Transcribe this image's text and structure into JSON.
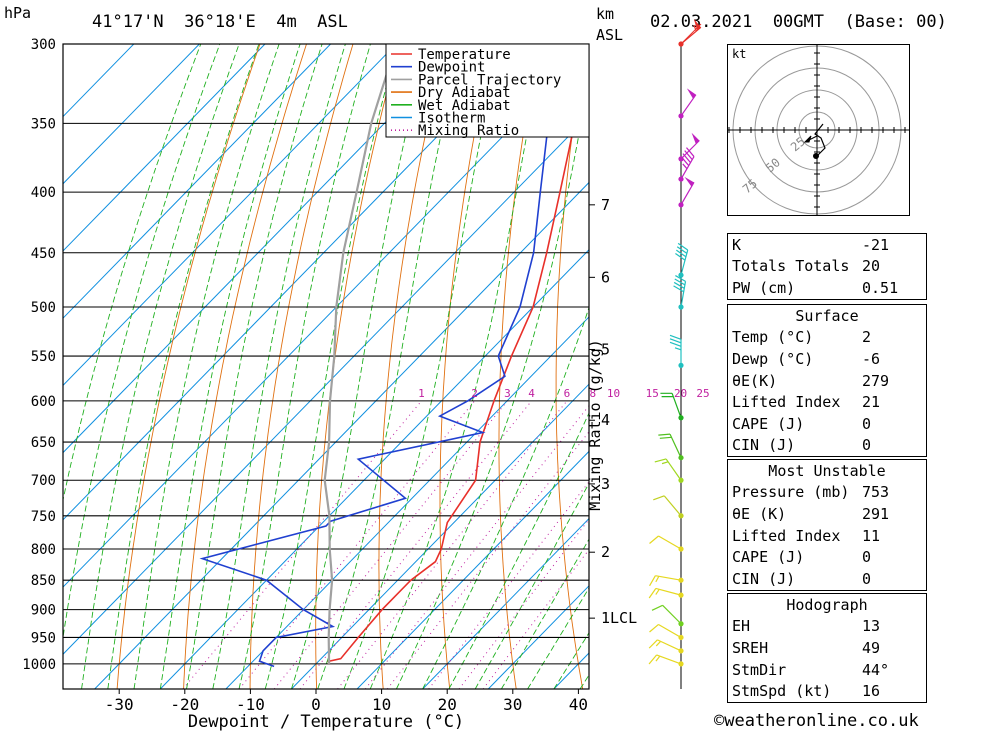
{
  "header": {
    "left_unit": "hPa",
    "location": "41°17'N  36°18'E  4m  ASL",
    "km_label": "km",
    "asl_label": "ASL",
    "datetime": "02.03.2021  00GMT  (Base: 00)"
  },
  "legend": [
    {
      "label": "Temperature",
      "color": "#e8302a",
      "style": "solid"
    },
    {
      "label": "Dewpoint",
      "color": "#2040d0",
      "style": "solid"
    },
    {
      "label": "Parcel Trajectory",
      "color": "#a0a0a0",
      "style": "solid"
    },
    {
      "label": "Dry Adiabat",
      "color": "#e07010",
      "style": "solid"
    },
    {
      "label": "Wet Adiabat",
      "color": "#20b020",
      "style": "solid"
    },
    {
      "label": "Isotherm",
      "color": "#1090e0",
      "style": "solid"
    },
    {
      "label": "Mixing Ratio",
      "color": "#c020a0",
      "style": "dotted"
    }
  ],
  "chart_data": {
    "type": "line",
    "title": "",
    "xlabel": "Dewpoint / Temperature (°C)",
    "ylabel": "hPa",
    "x_ticks": [
      -30,
      -20,
      -10,
      0,
      10,
      20,
      30,
      40
    ],
    "pressure_levels": [
      300,
      350,
      400,
      450,
      500,
      550,
      600,
      650,
      700,
      750,
      800,
      850,
      900,
      950,
      1000
    ],
    "km_ticks": [
      {
        "label": "7",
        "p": 410
      },
      {
        "label": "6",
        "p": 472
      },
      {
        "label": "5",
        "p": 543
      },
      {
        "label": "4",
        "p": 623
      },
      {
        "label": "3",
        "p": 705
      },
      {
        "label": "2",
        "p": 805
      },
      {
        "label": "1LCL",
        "p": 915
      }
    ],
    "mixing_ratio_label": "Mixing Ratio (g/kg)",
    "mixing_ratio_values": [
      "1",
      "2",
      "3",
      "4",
      "6",
      "8",
      "10",
      "15",
      "20",
      "25"
    ],
    "series": [
      {
        "name": "Temperature",
        "color": "#e8302a",
        "points": [
          [
            2,
            1000
          ],
          [
            1.5,
            995
          ],
          [
            3,
            990
          ],
          [
            2.5,
            950
          ],
          [
            2,
            900
          ],
          [
            2,
            850
          ],
          [
            3,
            820
          ],
          [
            2,
            800
          ],
          [
            -1,
            760
          ],
          [
            -3,
            700
          ],
          [
            -8,
            650
          ],
          [
            -12,
            600
          ],
          [
            -16,
            550
          ],
          [
            -20,
            500
          ],
          [
            -26,
            450
          ],
          [
            -33,
            400
          ],
          [
            -41,
            350
          ],
          [
            -50,
            300
          ]
        ]
      },
      {
        "name": "Dewpoint",
        "color": "#2040d0",
        "points": [
          [
            -6,
            1005
          ],
          [
            -9,
            995
          ],
          [
            -10,
            975
          ],
          [
            -10,
            950
          ],
          [
            -3,
            930
          ],
          [
            -10,
            900
          ],
          [
            -20,
            850
          ],
          [
            -33,
            815
          ],
          [
            -19,
            765
          ],
          [
            -19,
            758
          ],
          [
            -11,
            725
          ],
          [
            -24,
            672
          ],
          [
            -9,
            638
          ],
          [
            -18,
            618
          ],
          [
            -16,
            600
          ],
          [
            -14,
            572
          ],
          [
            -18,
            550
          ],
          [
            -22,
            500
          ],
          [
            -28,
            450
          ],
          [
            -36,
            400
          ],
          [
            -45,
            350
          ],
          [
            -59,
            300
          ]
        ]
      },
      {
        "name": "Parcel Trajectory",
        "color": "#a0a0a0",
        "points": [
          [
            2,
            1000
          ],
          [
            -2,
            950
          ],
          [
            -6,
            900
          ],
          [
            -10,
            850
          ],
          [
            -15,
            800
          ],
          [
            -20,
            750
          ],
          [
            -26,
            700
          ],
          [
            -31,
            650
          ],
          [
            -37,
            600
          ],
          [
            -43,
            550
          ],
          [
            -50,
            500
          ],
          [
            -57,
            450
          ],
          [
            -64,
            400
          ],
          [
            -72,
            350
          ],
          [
            -80,
            300
          ]
        ]
      }
    ]
  },
  "winds": [
    {
      "p": 1000,
      "dir": 290,
      "speed": 15,
      "color": "#e6d820"
    },
    {
      "p": 975,
      "dir": 295,
      "speed": 15,
      "color": "#e6d820"
    },
    {
      "p": 950,
      "dir": 300,
      "speed": 10,
      "color": "#e6d820"
    },
    {
      "p": 925,
      "dir": 315,
      "speed": 10,
      "color": "#70d020"
    },
    {
      "p": 875,
      "dir": 285,
      "speed": 15,
      "color": "#e6d820"
    },
    {
      "p": 850,
      "dir": 280,
      "speed": 15,
      "color": "#e6d820"
    },
    {
      "p": 800,
      "dir": 300,
      "speed": 10,
      "color": "#e6d820"
    },
    {
      "p": 750,
      "dir": 320,
      "speed": 10,
      "color": "#c0d020"
    },
    {
      "p": 700,
      "dir": 325,
      "speed": 15,
      "color": "#a0d820"
    },
    {
      "p": 670,
      "dir": 335,
      "speed": 20,
      "color": "#50c020"
    },
    {
      "p": 620,
      "dir": 340,
      "speed": 20,
      "color": "#20b020"
    },
    {
      "p": 560,
      "dir": 0,
      "speed": 35,
      "color": "#20c0c0"
    },
    {
      "p": 500,
      "dir": 10,
      "speed": 40,
      "color": "#20c0c0"
    },
    {
      "p": 470,
      "dir": 15,
      "speed": 40,
      "color": "#20c0c0"
    },
    {
      "p": 410,
      "dir": 30,
      "speed": 50,
      "color": "#c020c0"
    },
    {
      "p": 390,
      "dir": 30,
      "speed": 45,
      "color": "#c020c0"
    },
    {
      "p": 375,
      "dir": 45,
      "speed": 50,
      "color": "#c020c0"
    },
    {
      "p": 345,
      "dir": 35,
      "speed": 50,
      "color": "#c020c0"
    },
    {
      "p": 300,
      "dir": 50,
      "speed": 55,
      "color": "#e8302a"
    }
  ],
  "hodograph": {
    "unit_label": "kt",
    "ring_labels": [
      "25",
      "50",
      "75"
    ]
  },
  "indices": [
    {
      "label": "K",
      "value": "-21"
    },
    {
      "label": "Totals Totals",
      "value": "20"
    },
    {
      "label": "PW (cm)",
      "value": "0.51"
    }
  ],
  "surface": {
    "title": "Surface",
    "rows": [
      {
        "label": "Temp (°C)",
        "value": "2"
      },
      {
        "label": "Dewp (°C)",
        "value": "-6"
      },
      {
        "label": "θE(K)",
        "value": "279"
      },
      {
        "label": "Lifted Index",
        "value": "21"
      },
      {
        "label": "CAPE (J)",
        "value": "0"
      },
      {
        "label": "CIN (J)",
        "value": "0"
      }
    ]
  },
  "most_unstable": {
    "title": "Most Unstable",
    "rows": [
      {
        "label": "Pressure (mb)",
        "value": "753"
      },
      {
        "label": "θE (K)",
        "value": "291"
      },
      {
        "label": "Lifted Index",
        "value": "11"
      },
      {
        "label": "CAPE (J)",
        "value": "0"
      },
      {
        "label": "CIN (J)",
        "value": "0"
      }
    ]
  },
  "hodograph_table": {
    "title": "Hodograph",
    "rows": [
      {
        "label": "EH",
        "value": "13"
      },
      {
        "label": "SREH",
        "value": "49"
      },
      {
        "label": "StmDir",
        "value": "44°"
      },
      {
        "label": "StmSpd (kt)",
        "value": "16"
      }
    ]
  },
  "footer": {
    "copyright": "©weatheronline.co.uk"
  }
}
